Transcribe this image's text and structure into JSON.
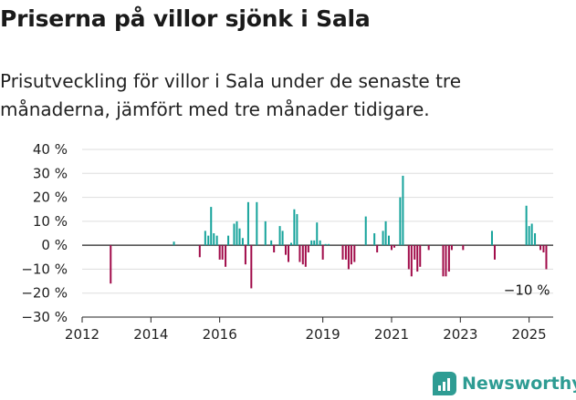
{
  "header": {
    "title": "Priserna på villor sjönk i Sala",
    "subtitle": "Prisutveckling för villor i Sala under de senaste tre månaderna, jämfört med tre månader tidigare."
  },
  "brand": {
    "name": "Newsworthy",
    "icon": "newsworthy-logo-icon",
    "color": "#2e9c93"
  },
  "chart_data": {
    "type": "bar",
    "title": "Priserna på villor sjönk i Sala",
    "xlabel": "",
    "ylabel": "",
    "ylim": [
      -30,
      40
    ],
    "xlim": [
      2012.0,
      2025.7
    ],
    "y_ticks": [
      40,
      30,
      20,
      10,
      0,
      -10,
      -20,
      -30
    ],
    "y_tick_labels": [
      "40 %",
      "30 %",
      "20 %",
      "10 %",
      "0 %",
      "−10 %",
      "−20 %",
      "−30 %"
    ],
    "x_ticks": [
      2012,
      2014,
      2016,
      2019,
      2021,
      2023,
      2025
    ],
    "x_tick_labels": [
      "2012",
      "2014",
      "2016",
      "2019",
      "2021",
      "2023",
      "2025"
    ],
    "grid": true,
    "colors": {
      "positive": "#16a39b",
      "negative": "#a10c4a",
      "zero_line": "#222222",
      "grid": "#dddddd"
    },
    "annotation": {
      "text": "−10 %",
      "x": 2025.5,
      "y": -10
    },
    "x": [
      2012.83,
      2014.67,
      2015.42,
      2015.58,
      2015.67,
      2015.75,
      2015.83,
      2015.92,
      2016.0,
      2016.08,
      2016.17,
      2016.25,
      2016.42,
      2016.5,
      2016.58,
      2016.67,
      2016.75,
      2016.83,
      2016.92,
      2017.08,
      2017.33,
      2017.5,
      2017.58,
      2017.75,
      2017.83,
      2017.92,
      2018.0,
      2018.08,
      2018.17,
      2018.25,
      2018.33,
      2018.42,
      2018.5,
      2018.58,
      2018.67,
      2018.75,
      2018.83,
      2018.92,
      2019.0,
      2019.08,
      2019.17,
      2019.58,
      2019.67,
      2019.75,
      2019.83,
      2019.92,
      2020.25,
      2020.5,
      2020.58,
      2020.75,
      2020.83,
      2020.92,
      2021.0,
      2021.08,
      2021.25,
      2021.33,
      2021.5,
      2021.58,
      2021.67,
      2021.75,
      2021.83,
      2022.08,
      2022.5,
      2022.58,
      2022.67,
      2022.75,
      2023.08,
      2023.92,
      2024.0,
      2024.92,
      2025.0,
      2025.08,
      2025.17,
      2025.33,
      2025.42,
      2025.5
    ],
    "values": [
      -16,
      1.5,
      -5,
      6,
      4,
      16,
      5,
      4,
      -6,
      -6,
      -9,
      4,
      9,
      10,
      7,
      3,
      -8,
      18,
      -18,
      18,
      10,
      2,
      -3,
      8,
      6,
      -4,
      -7,
      1,
      15,
      13,
      -7,
      -8,
      -9,
      -3,
      2,
      2,
      9.5,
      2,
      -6,
      0.5,
      0.5,
      -6,
      -6,
      -10,
      -8,
      -7,
      12,
      5,
      -3,
      6,
      10,
      4,
      -2,
      -1,
      20,
      29,
      -10,
      -13,
      -6,
      -11,
      -9,
      -2,
      -13,
      -13,
      -11,
      -2,
      -2,
      6,
      -6,
      16.5,
      8,
      9,
      5,
      -2,
      -3,
      -10
    ]
  }
}
